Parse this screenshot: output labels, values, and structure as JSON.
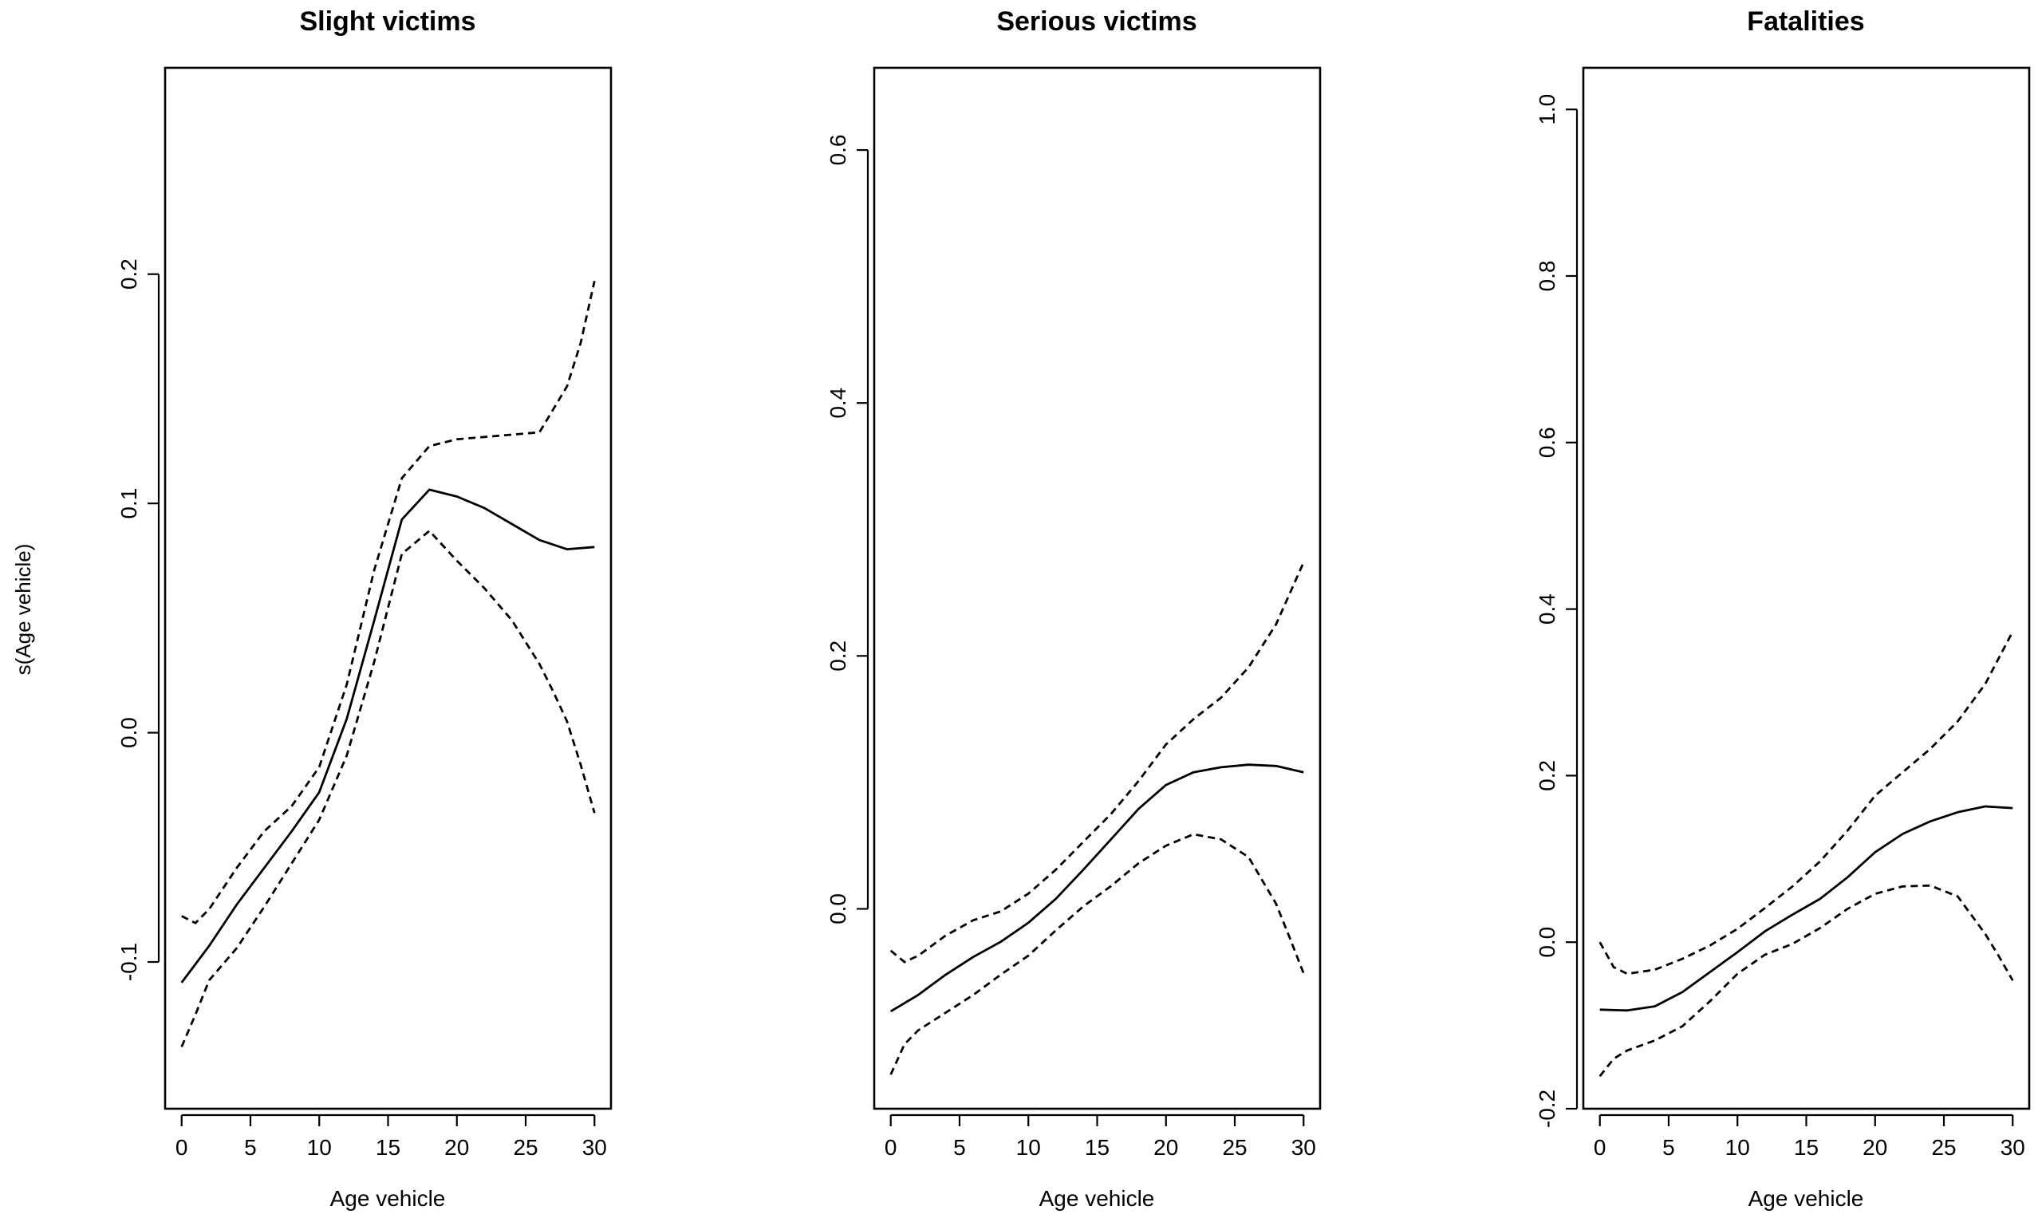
{
  "chart_data": [
    {
      "type": "line",
      "title": "Slight victims",
      "xlabel": "Age vehicle",
      "ylabel": "s(Age vehicle)",
      "xlim": [
        -1.2,
        31.2
      ],
      "ylim": [
        -0.164,
        0.29
      ],
      "xticks": [
        "0",
        "5",
        "10",
        "15",
        "20",
        "25",
        "30"
      ],
      "yticks": [
        "-0.1",
        "0.0",
        "0.1",
        "0.2"
      ],
      "grid": false,
      "series": [
        {
          "role": "fit",
          "style": "solid",
          "x": [
            0,
            2,
            4,
            6,
            8,
            10,
            12,
            14,
            16,
            18,
            20,
            22,
            24,
            26,
            28,
            30
          ],
          "y": [
            -0.109,
            -0.093,
            -0.075,
            -0.059,
            -0.043,
            -0.026,
            0.006,
            0.049,
            0.093,
            0.106,
            0.103,
            0.098,
            0.091,
            0.084,
            0.08,
            0.081
          ]
        },
        {
          "role": "upper",
          "style": "dashed",
          "x": [
            0,
            1,
            2,
            4,
            6,
            8,
            10,
            12,
            14,
            16,
            18,
            20,
            22,
            24,
            26,
            28,
            29,
            30
          ],
          "y": [
            -0.08,
            -0.083,
            -0.077,
            -0.059,
            -0.043,
            -0.032,
            -0.015,
            0.021,
            0.071,
            0.111,
            0.125,
            0.128,
            0.129,
            0.13,
            0.131,
            0.151,
            0.17,
            0.197
          ]
        },
        {
          "role": "lower",
          "style": "dashed",
          "x": [
            0,
            1,
            2,
            4,
            6,
            8,
            10,
            12,
            14,
            16,
            18,
            20,
            22,
            24,
            26,
            27,
            28,
            29,
            30
          ],
          "y": [
            -0.137,
            -0.123,
            -0.108,
            -0.094,
            -0.076,
            -0.057,
            -0.038,
            -0.01,
            0.031,
            0.078,
            0.088,
            0.075,
            0.063,
            0.049,
            0.03,
            0.018,
            0.005,
            -0.014,
            -0.035
          ]
        }
      ]
    },
    {
      "type": "line",
      "title": "Serious victims",
      "xlabel": "Age vehicle",
      "ylabel": "",
      "xlim": [
        -1.2,
        31.2
      ],
      "ylim": [
        -0.158,
        0.665
      ],
      "xticks": [
        "0",
        "5",
        "10",
        "15",
        "20",
        "25",
        "30"
      ],
      "yticks": [
        "0.0",
        "0.2",
        "0.4",
        "0.6"
      ],
      "grid": false,
      "series": [
        {
          "role": "fit",
          "style": "solid",
          "x": [
            0,
            2,
            4,
            6,
            8,
            10,
            12,
            14,
            16,
            18,
            20,
            22,
            24,
            26,
            28,
            30
          ],
          "y": [
            -0.081,
            -0.068,
            -0.052,
            -0.038,
            -0.026,
            -0.011,
            0.008,
            0.031,
            0.055,
            0.079,
            0.098,
            0.108,
            0.112,
            0.114,
            0.113,
            0.108
          ]
        },
        {
          "role": "upper",
          "style": "dashed",
          "x": [
            0,
            1,
            2,
            4,
            6,
            8,
            10,
            12,
            14,
            16,
            18,
            20,
            22,
            24,
            26,
            28,
            30
          ],
          "y": [
            -0.033,
            -0.042,
            -0.037,
            -0.021,
            -0.009,
            -0.002,
            0.012,
            0.031,
            0.053,
            0.075,
            0.101,
            0.13,
            0.15,
            0.167,
            0.191,
            0.225,
            0.274
          ]
        },
        {
          "role": "lower",
          "style": "dashed",
          "x": [
            0,
            1,
            2,
            4,
            6,
            8,
            10,
            12,
            14,
            16,
            18,
            20,
            22,
            24,
            26,
            28,
            29,
            30
          ],
          "y": [
            -0.131,
            -0.107,
            -0.096,
            -0.082,
            -0.068,
            -0.052,
            -0.037,
            -0.017,
            0.002,
            0.018,
            0.036,
            0.05,
            0.059,
            0.055,
            0.041,
            0.004,
            -0.023,
            -0.051
          ]
        }
      ]
    },
    {
      "type": "line",
      "title": "Fatalities",
      "xlabel": "Age vehicle",
      "ylabel": "",
      "xlim": [
        -1.2,
        31.2
      ],
      "ylim": [
        -0.2,
        1.05
      ],
      "xticks": [
        "0",
        "5",
        "10",
        "15",
        "20",
        "25",
        "30"
      ],
      "yticks": [
        "-0.2",
        "0.0",
        "0.2",
        "0.4",
        "0.6",
        "0.8",
        "1.0"
      ],
      "grid": false,
      "series": [
        {
          "role": "fit",
          "style": "solid",
          "x": [
            0,
            2,
            4,
            6,
            8,
            10,
            12,
            14,
            16,
            18,
            20,
            22,
            24,
            26,
            28,
            30
          ],
          "y": [
            -0.081,
            -0.082,
            -0.077,
            -0.06,
            -0.036,
            -0.012,
            0.013,
            0.033,
            0.052,
            0.078,
            0.108,
            0.13,
            0.145,
            0.156,
            0.163,
            0.161
          ]
        },
        {
          "role": "upper",
          "style": "dashed",
          "x": [
            0,
            1,
            2,
            4,
            6,
            8,
            10,
            12,
            14,
            16,
            18,
            20,
            22,
            24,
            26,
            28,
            30
          ],
          "y": [
            0.0,
            -0.03,
            -0.038,
            -0.033,
            -0.02,
            -0.004,
            0.016,
            0.041,
            0.067,
            0.097,
            0.134,
            0.176,
            0.204,
            0.232,
            0.265,
            0.31,
            0.373
          ]
        },
        {
          "role": "lower",
          "style": "dashed",
          "x": [
            0,
            1,
            2,
            4,
            6,
            8,
            10,
            12,
            14,
            16,
            18,
            20,
            22,
            24,
            26,
            28,
            29,
            30
          ],
          "y": [
            -0.161,
            -0.14,
            -0.13,
            -0.118,
            -0.101,
            -0.071,
            -0.038,
            -0.015,
            -0.002,
            0.017,
            0.04,
            0.058,
            0.067,
            0.068,
            0.055,
            0.01,
            -0.017,
            -0.046
          ]
        }
      ]
    }
  ]
}
